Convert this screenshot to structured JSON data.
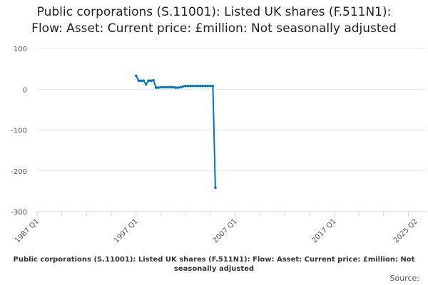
{
  "title_line1": "Public corporations (S.11001): Listed UK shares (F.511N1):",
  "title_line2": "Flow: Asset: Current price: £million: Not seasonally adjusted",
  "footer_title": "Public corporations (S.11001): Listed UK shares (F.511N1): Flow: Asset: Current price: £million: Not seasonally adjusted",
  "source_label": "Source:",
  "chart_data": {
    "type": "line",
    "title": "Public corporations (S.11001): Listed UK shares (F.511N1): Flow: Asset: Current price: £million: Not seasonally adjusted",
    "xlabel": "",
    "ylabel": "",
    "ylim": [
      -300,
      100
    ],
    "yticks": [
      100,
      0,
      -100,
      -200,
      -300
    ],
    "xticks": [
      "1987 Q1",
      "1997 Q1",
      "2007 Q1",
      "2017 Q1",
      "2025 Q2"
    ],
    "x_range": [
      "1987 Q1",
      "2025 Q2"
    ],
    "grid": "horizontal",
    "color": "#0075c4",
    "series": [
      {
        "start": "1997 Q1",
        "x": [
          "1997 Q1",
          "1997 Q2",
          "1997 Q3",
          "1997 Q4",
          "1998 Q1",
          "1998 Q2",
          "1998 Q3",
          "1998 Q4",
          "1999 Q1",
          "1999 Q2",
          "1999 Q3",
          "1999 Q4",
          "2000 Q1",
          "2000 Q2",
          "2000 Q3",
          "2000 Q4",
          "2001 Q1",
          "2001 Q2",
          "2001 Q3",
          "2001 Q4",
          "2002 Q1",
          "2002 Q2",
          "2002 Q3",
          "2002 Q4",
          "2003 Q1",
          "2003 Q2",
          "2003 Q3",
          "2003 Q4",
          "2004 Q1",
          "2004 Q2",
          "2004 Q3",
          "2004 Q4",
          "2005 Q1"
        ],
        "values": [
          33,
          21,
          21,
          21,
          12,
          21,
          21,
          22,
          4,
          4,
          5,
          5,
          5,
          5,
          5,
          5,
          4,
          4,
          5,
          7,
          8,
          8,
          8,
          8,
          8,
          8,
          8,
          8,
          8,
          8,
          8,
          8,
          -241
        ]
      }
    ]
  }
}
